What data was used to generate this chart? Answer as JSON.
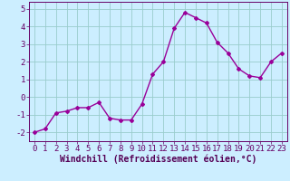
{
  "x": [
    0,
    1,
    2,
    3,
    4,
    5,
    6,
    7,
    8,
    9,
    10,
    11,
    12,
    13,
    14,
    15,
    16,
    17,
    18,
    19,
    20,
    21,
    22,
    23
  ],
  "y": [
    -2.0,
    -1.8,
    -0.9,
    -0.8,
    -0.6,
    -0.6,
    -0.3,
    -1.2,
    -1.3,
    -1.3,
    -0.4,
    1.3,
    2.0,
    3.9,
    4.8,
    4.5,
    4.2,
    3.1,
    2.5,
    1.6,
    1.2,
    1.1,
    2.0,
    2.5
  ],
  "line_color": "#990099",
  "marker": "D",
  "marker_size": 2,
  "line_width": 1.0,
  "bg_color": "#cceeff",
  "grid_color": "#99cccc",
  "xlabel": "Windchill (Refroidissement éolien,°C)",
  "xlabel_color": "#550055",
  "xlabel_fontsize": 7,
  "ylabel_ticks": [
    -2,
    -1,
    0,
    1,
    2,
    3,
    4,
    5
  ],
  "xtick_labels": [
    "0",
    "1",
    "2",
    "3",
    "4",
    "5",
    "6",
    "7",
    "8",
    "9",
    "10",
    "11",
    "12",
    "13",
    "14",
    "15",
    "16",
    "17",
    "18",
    "19",
    "20",
    "21",
    "22",
    "23"
  ],
  "ylim": [
    -2.5,
    5.4
  ],
  "xlim": [
    -0.5,
    23.5
  ],
  "tick_fontsize": 6.5,
  "spine_color": "#660066",
  "title_color": "#550055"
}
